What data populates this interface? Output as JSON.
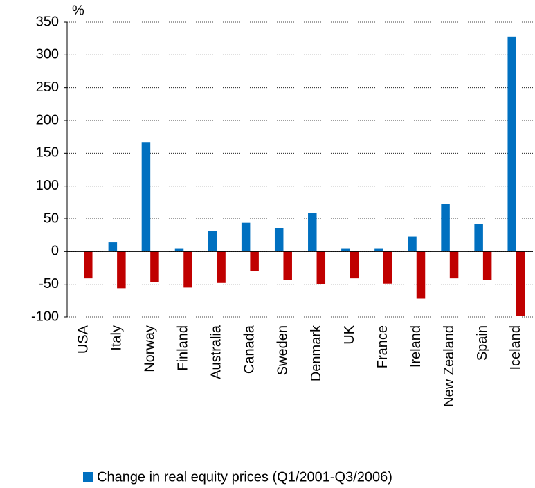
{
  "chart_data": {
    "type": "bar",
    "y_label": "%",
    "categories": [
      "USA",
      "Italy",
      "Norway",
      "Finland",
      "Australia",
      "Canada",
      "Sweden",
      "Denmark",
      "UK",
      "France",
      "Ireland",
      "New Zealand",
      "Spain",
      "Iceland"
    ],
    "series": [
      {
        "name": "Change in real equity prices (Q1/2001-Q3/2006)",
        "color": "#0070c0",
        "values": [
          1,
          14,
          167,
          4,
          32,
          44,
          36,
          59,
          4,
          4,
          23,
          73,
          42,
          328
        ]
      },
      {
        "color": "#c00000",
        "values": [
          -41,
          -56,
          -47,
          -55,
          -48,
          -30,
          -44,
          -50,
          -41,
          -49,
          -72,
          -41,
          -43,
          -98
        ]
      }
    ],
    "ylim": [
      -100,
      350
    ],
    "yticks": [
      -100,
      -50,
      0,
      50,
      100,
      150,
      200,
      250,
      300,
      350
    ],
    "grid": true
  }
}
